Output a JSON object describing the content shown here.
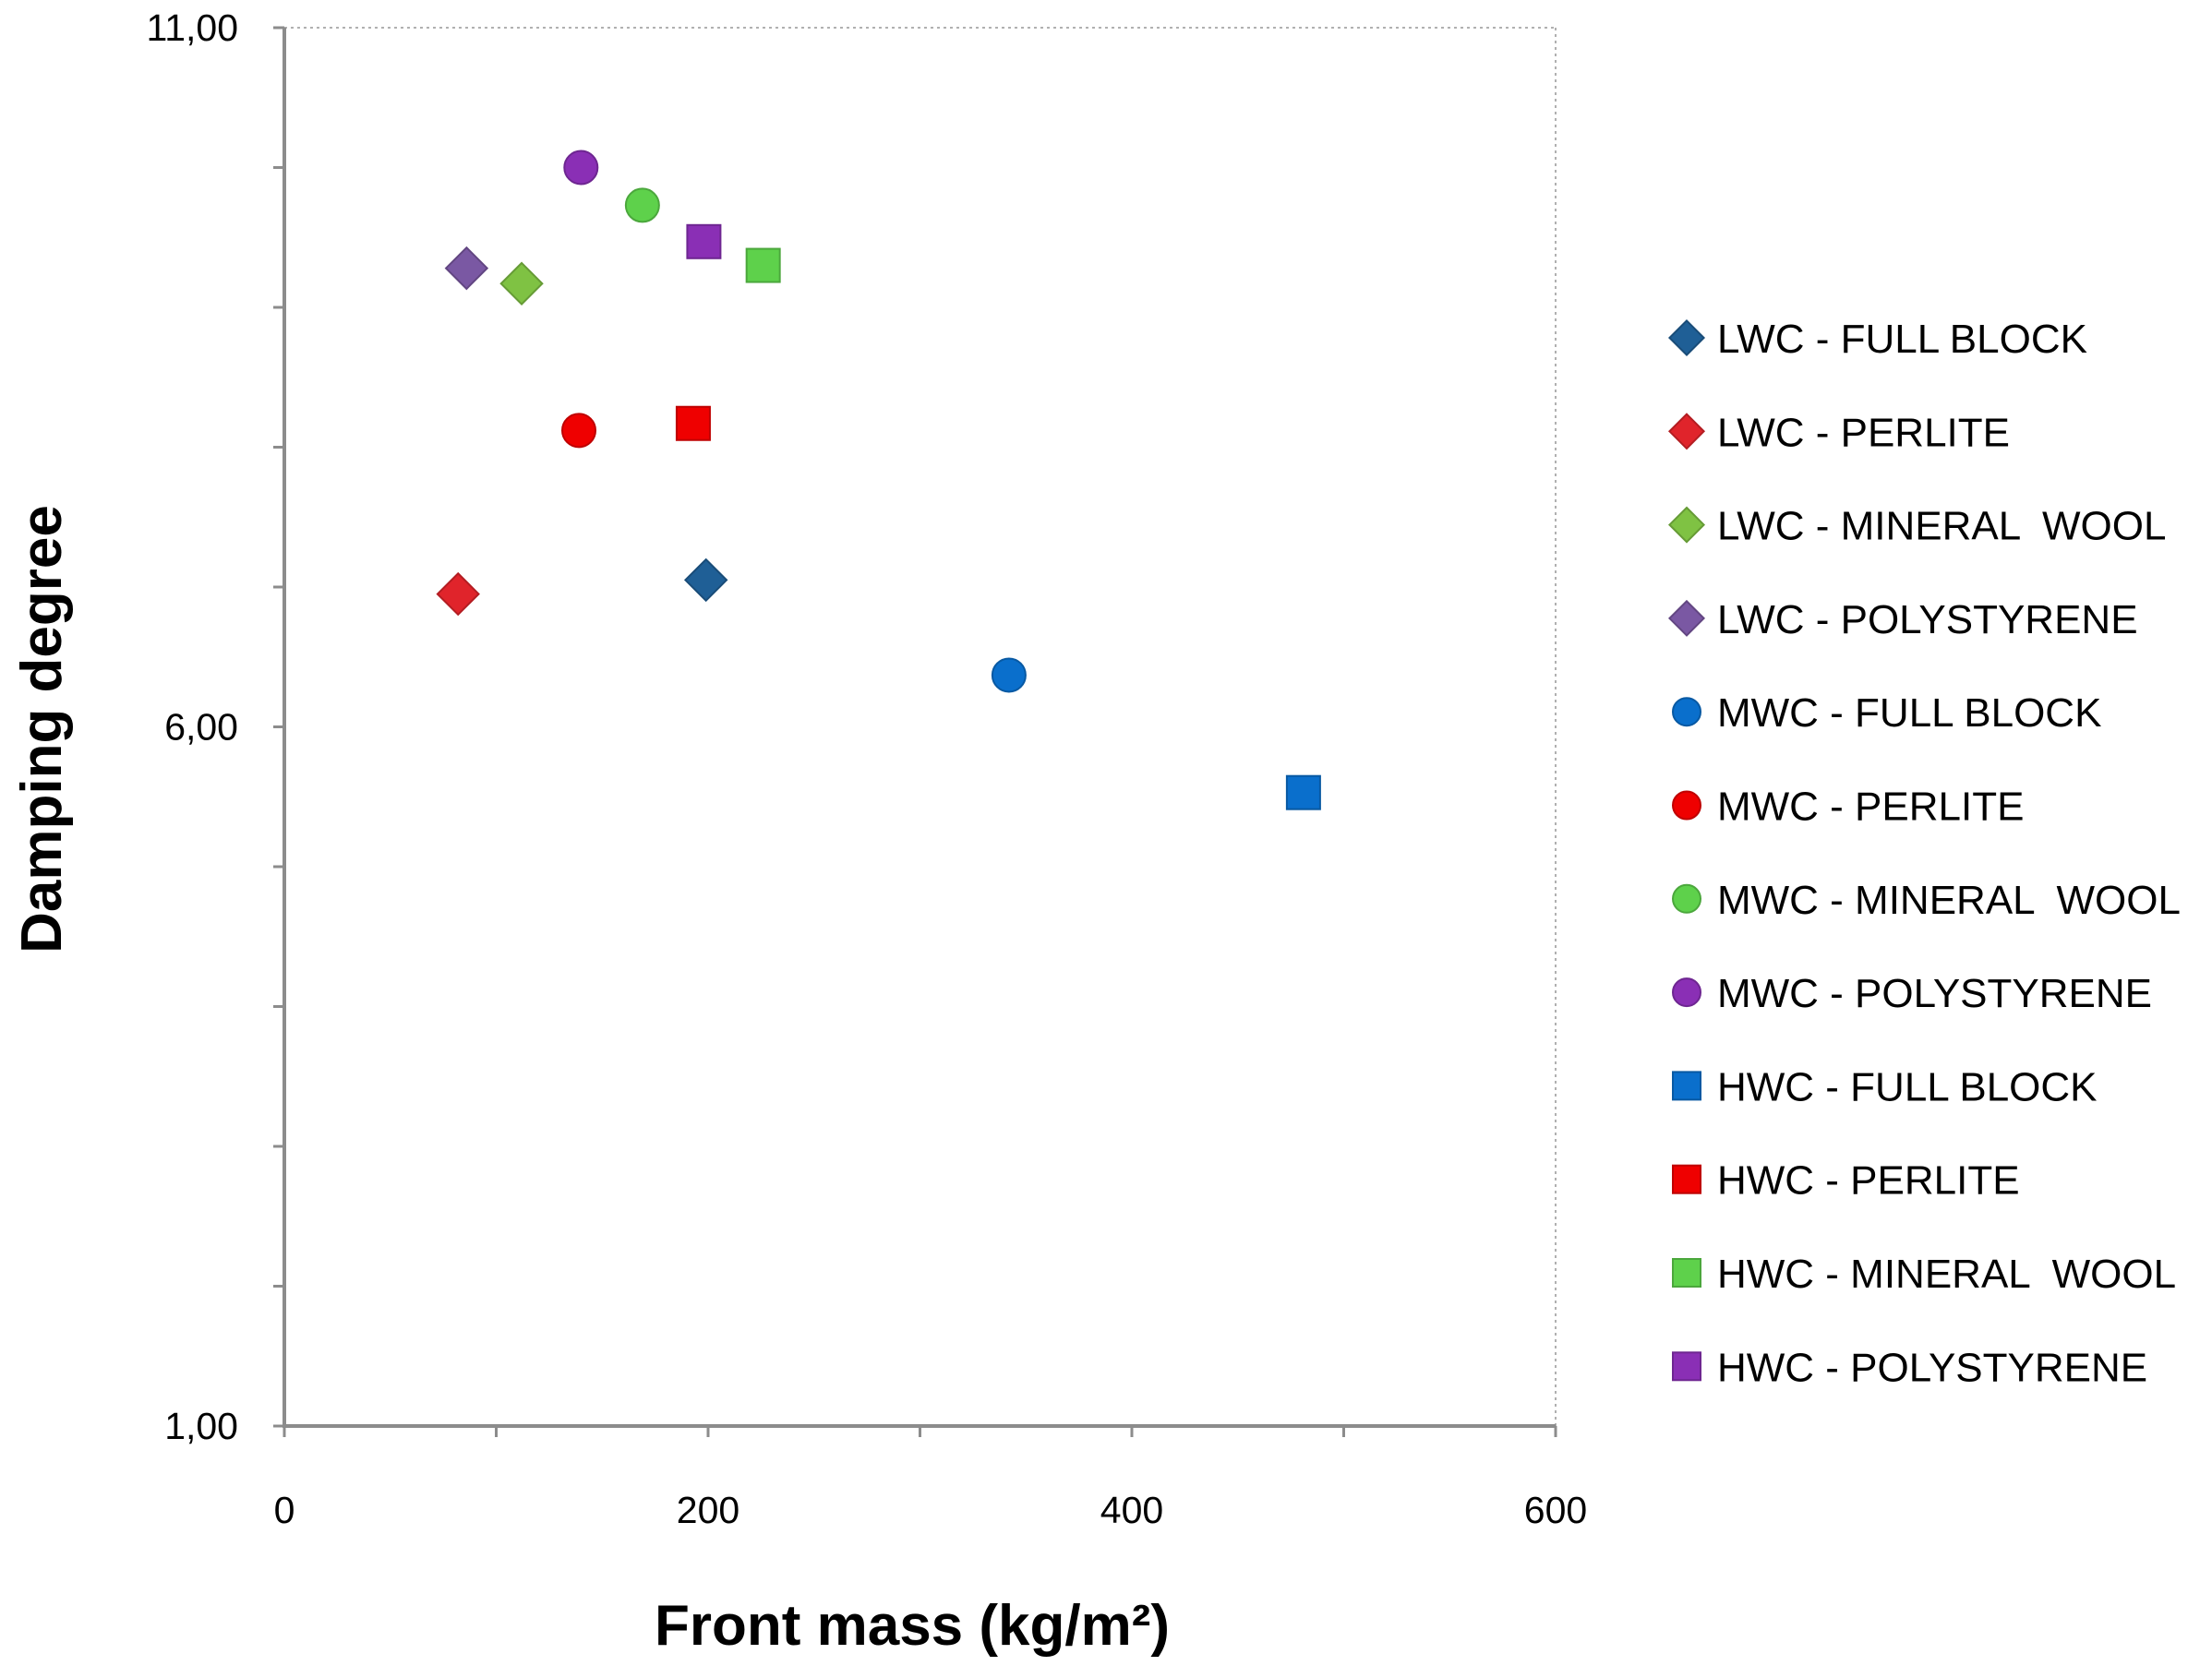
{
  "chart_data": {
    "type": "scatter",
    "title": "",
    "xlabel": "Front mass (kg/m²)",
    "ylabel": "Damping degree",
    "xlim": [
      0,
      600
    ],
    "ylim": [
      1,
      11
    ],
    "x_ticks": [
      0,
      200,
      400,
      600
    ],
    "x_tick_labels": [
      "0",
      "200",
      "400",
      "600"
    ],
    "x_minor_ticks": [
      100,
      300,
      500
    ],
    "y_ticks": [
      1,
      6,
      11
    ],
    "y_tick_labels": [
      "1,00",
      "6,00",
      "11,00"
    ],
    "y_minor_ticks": [
      2,
      3,
      4,
      5,
      7,
      8,
      9,
      10
    ],
    "grid": false,
    "legend_position": "right",
    "series": [
      {
        "name": "LWC - FULL BLOCK",
        "marker": "diamond",
        "color": "#1f5f96",
        "points": [
          [
            199,
            7.05
          ]
        ]
      },
      {
        "name": "LWC - PERLITE",
        "marker": "diamond",
        "color": "#e0242b",
        "points": [
          [
            82,
            6.95
          ]
        ]
      },
      {
        "name": "LWC - MINERAL  WOOL",
        "marker": "diamond",
        "color": "#7fc243",
        "points": [
          [
            112,
            9.17
          ]
        ]
      },
      {
        "name": "LWC - POLYSTYRENE",
        "marker": "diamond",
        "color": "#7a58a3",
        "points": [
          [
            86,
            9.28
          ]
        ]
      },
      {
        "name": "MWC - FULL BLOCK",
        "marker": "circle",
        "color": "#0a6fcc",
        "points": [
          [
            342,
            6.37
          ]
        ]
      },
      {
        "name": "MWC - PERLITE",
        "marker": "circle",
        "color": "#ef0000",
        "points": [
          [
            139,
            8.12
          ]
        ]
      },
      {
        "name": "MWC - MINERAL  WOOL",
        "marker": "circle",
        "color": "#5ed14b",
        "points": [
          [
            169,
            9.73
          ]
        ]
      },
      {
        "name": "MWC - POLYSTYRENE",
        "marker": "circle",
        "color": "#8a2fb5",
        "points": [
          [
            140,
            10.0
          ]
        ]
      },
      {
        "name": "HWC - FULL BLOCK",
        "marker": "square",
        "color": "#0a6fcc",
        "points": [
          [
            481,
            5.53
          ]
        ]
      },
      {
        "name": "HWC - PERLITE",
        "marker": "square",
        "color": "#ef0000",
        "points": [
          [
            193,
            8.17
          ]
        ]
      },
      {
        "name": "HWC - MINERAL  WOOL",
        "marker": "square",
        "color": "#5ed14b",
        "points": [
          [
            226,
            9.3
          ]
        ]
      },
      {
        "name": "HWC - POLYSTYRENE",
        "marker": "square",
        "color": "#8a2fb5",
        "points": [
          [
            198,
            9.47
          ]
        ]
      }
    ]
  }
}
